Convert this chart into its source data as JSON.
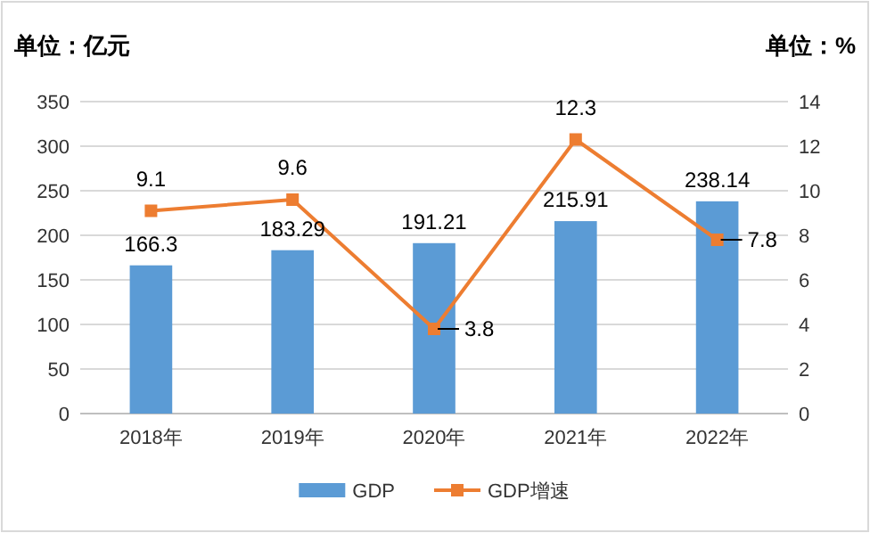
{
  "chart_data": {
    "type": "bar",
    "ylabel": "单位：亿元",
    "y2label": "单位：%",
    "categories": [
      "2018年",
      "2019年",
      "2020年",
      "2021年",
      "2022年"
    ],
    "series": [
      {
        "name": "GDP",
        "color": "#5b9bd5",
        "values": [
          166.3,
          183.29,
          191.21,
          215.91,
          238.14
        ]
      },
      {
        "name": "GDP增速",
        "type": "line",
        "axis": "y2",
        "color": "#ed7d31",
        "marker": "square",
        "values": [
          9.1,
          9.6,
          3.8,
          12.3,
          7.8
        ]
      }
    ],
    "ylim": [
      0,
      350
    ],
    "yticks": [
      0,
      50,
      100,
      150,
      200,
      250,
      300,
      350
    ],
    "y2lim": [
      0,
      14
    ],
    "y2ticks": [
      0,
      2,
      4,
      6,
      8,
      10,
      12,
      14
    ],
    "grid": "y",
    "legend": "bottom",
    "data_labels": true
  }
}
